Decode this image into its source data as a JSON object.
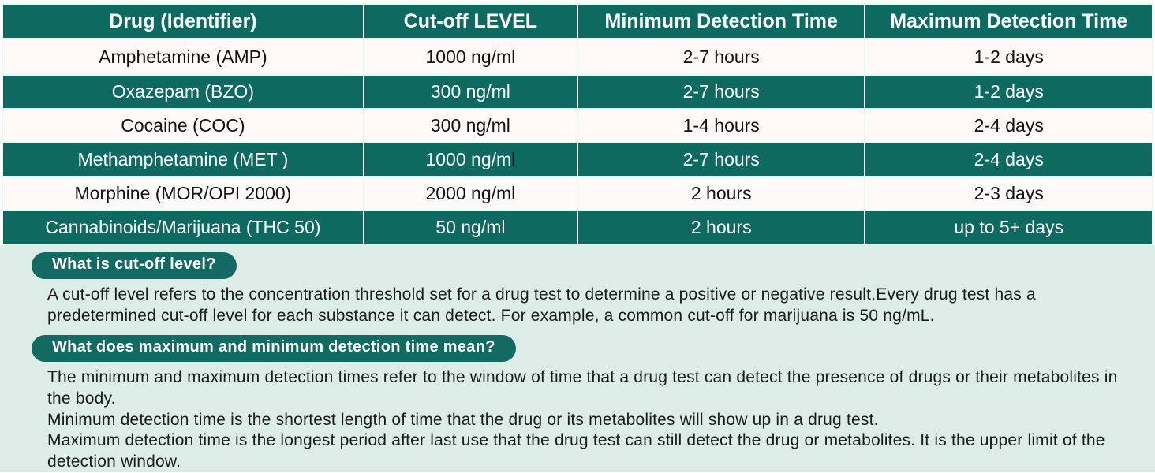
{
  "colors": {
    "teal": "#0e6a61",
    "row_light": "#fdfaf7",
    "divider": "#ecf6f1",
    "faq_background": "#dcede8",
    "pill_background": "#136a62"
  },
  "table": {
    "columns": [
      "Drug (Identifier)",
      "Cut-off LEVEL",
      "Minimum Detection Time",
      "Maximum Detection Time"
    ],
    "rows": [
      {
        "drug": "Amphetamine (AMP)",
        "cutoff": "1000 ng/ml",
        "cutoff_dark": "",
        "min_time": "2-7 hours",
        "max_time": "1-2 days"
      },
      {
        "drug": "Oxazepam (BZO)",
        "cutoff": "300 ng/ml",
        "cutoff_dark": "",
        "min_time": "2-7 hours",
        "max_time": "1-2 days"
      },
      {
        "drug": "Cocaine (COC)",
        "cutoff": "300 ng/ml",
        "cutoff_dark": "",
        "min_time": "1-4 hours",
        "max_time": "2-4 days"
      },
      {
        "drug": "Methamphetamine (MET )",
        "cutoff": "1000 ng/m",
        "cutoff_dark": "l",
        "min_time": "2-7 hours",
        "max_time": "2-4 days"
      },
      {
        "drug": "Morphine (MOR/OPI 2000)",
        "cutoff": "2000 ng/ml",
        "cutoff_dark": "",
        "min_time": "2 hours",
        "max_time": "2-3 days"
      },
      {
        "drug": "Cannabinoids/Marijuana (THC 50)",
        "cutoff": "50 ng/ml",
        "cutoff_dark": "",
        "min_time": "2 hours",
        "max_time": "up to 5+ days"
      }
    ]
  },
  "faq": {
    "items": [
      {
        "question": "What is cut-off level?",
        "lines": [
          "A cut-off level refers to the concentration threshold set for a drug test to determine a positive or negative result.Every drug test has a predetermined cut-off level for each substance it can detect. For example, a common cut-off for marijuana is 50 ng/mL."
        ]
      },
      {
        "question": "What does maximum and minimum detection time mean?",
        "lines": [
          "The minimum and maximum detection times refer to the window of time that a drug test can detect the presence of drugs or their metabolites in the body.",
          "Minimum detection time is the shortest length of time that the drug or its metabolites will show up in a drug test.",
          "Maximum detection time is the longest period after last use that the drug test can still detect the drug or metabolites. It is the upper limit of the detection window."
        ]
      }
    ]
  }
}
